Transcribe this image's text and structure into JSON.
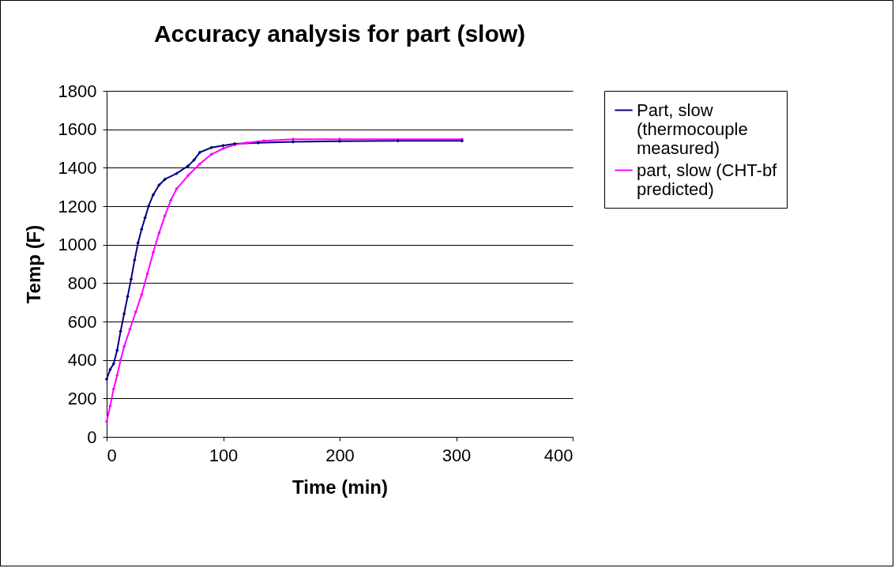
{
  "chart_data": {
    "type": "line",
    "title": "Accuracy analysis for part (slow)",
    "xlabel": "Time (min)",
    "ylabel": "Temp (F)",
    "xlim": [
      0,
      400
    ],
    "xticks": [
      0,
      100,
      200,
      300,
      400
    ],
    "ylim": [
      0,
      1800
    ],
    "yticks": [
      0,
      200,
      400,
      600,
      800,
      1000,
      1200,
      1400,
      1600,
      1800
    ],
    "grid": "y",
    "legend": "right",
    "marker": "diamond",
    "series": [
      {
        "name": "Part, slow (thermocouple measured)",
        "color": "#000080",
        "x": [
          0,
          3,
          6,
          9,
          12,
          15,
          18,
          21,
          24,
          27,
          30,
          33,
          36,
          40,
          45,
          50,
          60,
          70,
          75,
          80,
          90,
          100,
          110,
          130,
          160,
          200,
          250,
          305
        ],
        "values": [
          300,
          350,
          380,
          450,
          550,
          640,
          730,
          820,
          920,
          1010,
          1080,
          1140,
          1200,
          1260,
          1310,
          1340,
          1370,
          1410,
          1440,
          1480,
          1505,
          1515,
          1525,
          1530,
          1535,
          1538,
          1540,
          1540
        ]
      },
      {
        "name": "part, slow (CHT-bf predicted)",
        "color": "#ff00ff",
        "x": [
          0,
          3,
          6,
          9,
          12,
          15,
          20,
          25,
          30,
          35,
          40,
          45,
          50,
          55,
          60,
          70,
          80,
          90,
          100,
          110,
          120,
          135,
          160,
          200,
          305
        ],
        "values": [
          80,
          160,
          250,
          320,
          400,
          470,
          560,
          650,
          740,
          850,
          960,
          1060,
          1150,
          1230,
          1290,
          1360,
          1420,
          1470,
          1500,
          1520,
          1530,
          1540,
          1548,
          1548,
          1548
        ]
      }
    ]
  }
}
